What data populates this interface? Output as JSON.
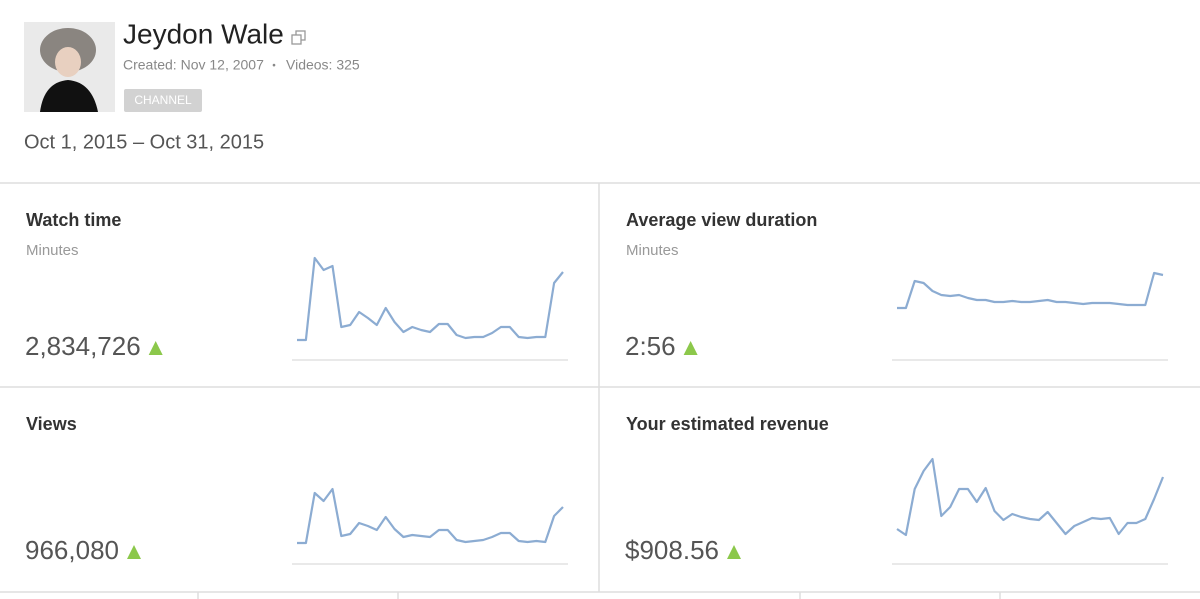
{
  "header": {
    "name": "Jeydon Wale",
    "created": "Created: Nov 12, 2007",
    "separator": "•",
    "videos": "Videos: 325",
    "badge": "CHANNEL"
  },
  "date_range": "Oct 1, 2015 – Oct 31, 2015",
  "panels": [
    {
      "title": "Watch time",
      "unit": "Minutes",
      "value": "2,834,726",
      "sparkline": [
        20,
        20,
        102,
        90,
        94,
        33,
        35,
        48,
        42,
        35,
        52,
        38,
        28,
        33,
        30,
        28,
        36,
        36,
        25,
        22,
        23,
        23,
        27,
        33,
        33,
        23,
        22,
        23,
        23,
        77,
        88
      ]
    },
    {
      "title": "Average view duration",
      "unit": "Minutes",
      "value": "2:56",
      "sparkline": [
        52,
        52,
        79,
        77,
        69,
        65,
        64,
        65,
        62,
        60,
        60,
        58,
        58,
        59,
        58,
        58,
        59,
        60,
        58,
        58,
        57,
        56,
        57,
        57,
        57,
        56,
        55,
        55,
        55,
        87,
        85
      ]
    },
    {
      "title": "Views",
      "value": "966,080",
      "sparkline": [
        21,
        21,
        71,
        63,
        75,
        28,
        30,
        41,
        38,
        34,
        47,
        35,
        27,
        29,
        28,
        27,
        34,
        34,
        24,
        22,
        23,
        24,
        27,
        31,
        31,
        23,
        22,
        23,
        22,
        48,
        57
      ]
    },
    {
      "title": "Your estimated revenue",
      "value": "$908.56",
      "sparkline": [
        35,
        29,
        75,
        93,
        105,
        48,
        57,
        75,
        75,
        62,
        76,
        53,
        44,
        50,
        47,
        45,
        44,
        52,
        41,
        30,
        38,
        42,
        46,
        45,
        46,
        30,
        41,
        41,
        45,
        65,
        87
      ]
    }
  ]
}
